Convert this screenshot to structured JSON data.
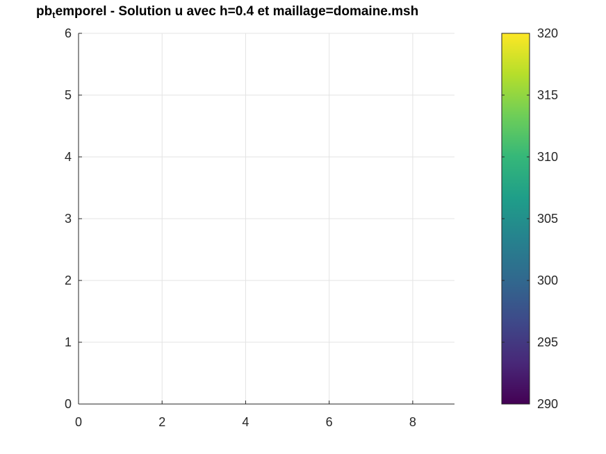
{
  "chart_data": {
    "type": "heatmap",
    "title": {
      "prefix": "pb",
      "subscript": "t",
      "suffix": "emporel - Solution u avec h=0.4 et maillage=domaine.msh"
    },
    "xlabel": "",
    "ylabel": "",
    "xlim": [
      0,
      9
    ],
    "ylim": [
      0,
      6
    ],
    "x_ticks": [
      0,
      2,
      4,
      6,
      8
    ],
    "y_ticks": [
      0,
      1,
      2,
      3,
      4,
      5,
      6
    ],
    "grid": true,
    "values": [],
    "colorbar": {
      "colormap": "viridis",
      "range": [
        290,
        320
      ],
      "ticks": [
        290,
        295,
        300,
        305,
        310,
        315,
        320
      ],
      "placement": "right",
      "colors": [
        "#440154",
        "#482878",
        "#3e4989",
        "#31688e",
        "#26828e",
        "#1f9e89",
        "#35b779",
        "#6ece58",
        "#b5de2b",
        "#fde725"
      ]
    }
  }
}
